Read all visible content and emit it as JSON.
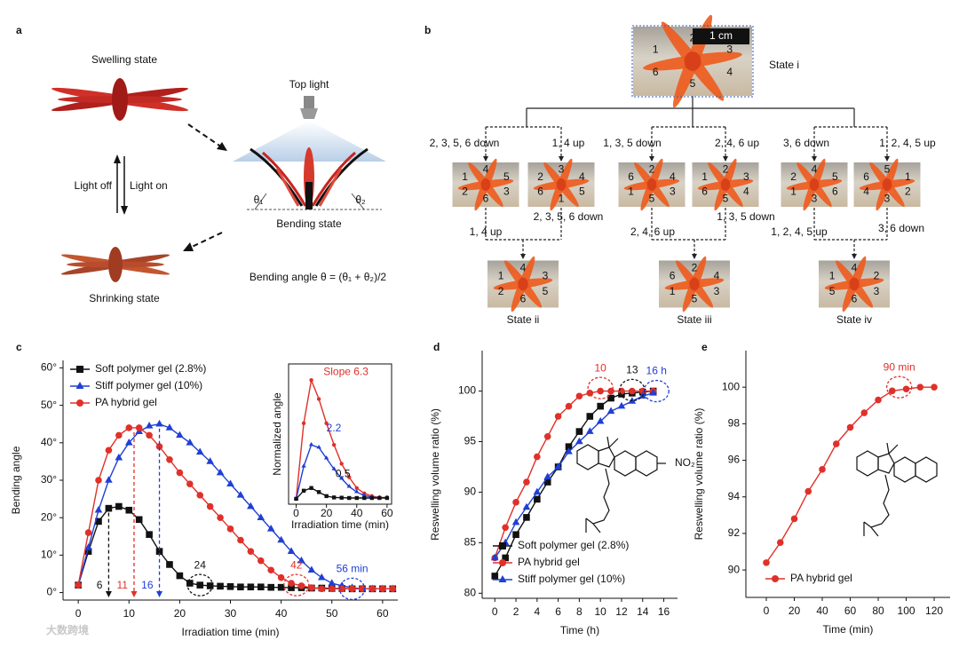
{
  "panel_a": {
    "label": "a",
    "swelling": "Swelling state",
    "top_light": "Top light",
    "light_off": "Light off",
    "light_on": "Light on",
    "theta1": "θ₁",
    "theta2": "θ₂",
    "bending": "Bending state",
    "shrinking": "Shrinking state",
    "formula": "Bending angle θ = (θ₁ + θ₂)/2"
  },
  "panel_b": {
    "label": "b",
    "scale_bar": "1 cm",
    "photos": [
      {
        "caption": "State i",
        "numbers": [
          "1",
          "2",
          "3",
          "4",
          "5",
          "6"
        ]
      },
      {
        "numbers": [
          "1",
          "4",
          "5",
          "3",
          "6",
          "2"
        ]
      },
      {
        "numbers": [
          "2",
          "3",
          "4",
          "5",
          "1",
          "6"
        ]
      },
      {
        "numbers": [
          "6",
          "2",
          "4",
          "3",
          "5",
          "1"
        ]
      },
      {
        "numbers": [
          "1",
          "2",
          "3",
          "4",
          "5",
          "6"
        ]
      },
      {
        "numbers": [
          "2",
          "4",
          "5",
          "6",
          "3",
          "1"
        ]
      },
      {
        "numbers": [
          "6",
          "5",
          "1",
          "2",
          "3",
          "4"
        ]
      },
      {
        "caption": "State ii",
        "numbers": [
          "1",
          "4",
          "3",
          "5",
          "6",
          "2"
        ]
      },
      {
        "caption": "State iii",
        "numbers": [
          "6",
          "2",
          "4",
          "3",
          "5",
          "1"
        ]
      },
      {
        "caption": "State iv",
        "numbers": [
          "1",
          "4",
          "2",
          "3",
          "6",
          "5"
        ]
      }
    ],
    "steps": [
      "2, 3, 5, 6 down",
      "1, 4 up",
      "1, 3, 5 down",
      "2, 4, 6 up",
      "3, 6 down",
      "1, 2, 4, 5 up",
      "2, 3, 5, 6 down",
      "1, 3, 5 down",
      "1, 4 up",
      "2, 4, 6 up",
      "1, 2, 4, 5 up",
      "3, 6 down"
    ]
  },
  "chart_data": [
    {
      "panel": "c",
      "type": "line",
      "xlabel": "Irradiation time (min)",
      "ylabel": "Bending angle",
      "x": [
        0,
        2,
        4,
        6,
        8,
        10,
        12,
        14,
        16,
        18,
        20,
        22,
        24,
        26,
        28,
        30,
        32,
        34,
        36,
        38,
        40,
        42,
        44,
        46,
        48,
        50,
        52,
        54,
        56,
        58,
        60,
        62
      ],
      "xlim": [
        -3,
        63
      ],
      "ylim": [
        -2,
        62
      ],
      "xticks": [
        0,
        10,
        20,
        30,
        40,
        50,
        60
      ],
      "yticks": [
        {
          "value": 0,
          "label": "0°"
        },
        {
          "value": 10,
          "label": "10°"
        },
        {
          "value": 20,
          "label": "20°"
        },
        {
          "value": 30,
          "label": "30°"
        },
        {
          "value": 40,
          "label": "40°"
        },
        {
          "value": 50,
          "label": "50°"
        },
        {
          "value": 60,
          "label": "60°"
        }
      ],
      "legend": "upper left",
      "series": [
        {
          "name": "Soft polymer gel (2.8%)",
          "color": "#111111",
          "marker": "square",
          "values": [
            2,
            11,
            19,
            22.5,
            23,
            22,
            19.5,
            15.5,
            11,
            7.5,
            4.5,
            2.5,
            2,
            1.8,
            1.7,
            1.6,
            1.5,
            1.5,
            1.5,
            1.4,
            1.4,
            1.3,
            1.3,
            1.2,
            1.2,
            1.1,
            1.1,
            1,
            1,
            1,
            1,
            1
          ]
        },
        {
          "name": "Stiff polymer gel (10%)",
          "color": "#1f3fd6",
          "marker": "triangle",
          "values": [
            2,
            12,
            22,
            30,
            36,
            40,
            43,
            44.5,
            45,
            44,
            42,
            40,
            37.5,
            35,
            32,
            29,
            26,
            23,
            20,
            17,
            14,
            11,
            8.5,
            6,
            4,
            2.5,
            1.8,
            1.3,
            1,
            1,
            1,
            1
          ]
        },
        {
          "name": "PA hybrid gel",
          "color": "#e0302a",
          "marker": "circle",
          "values": [
            2,
            16,
            30,
            38,
            42,
            44,
            44,
            42,
            39,
            35.5,
            32,
            29,
            26,
            23,
            20,
            17,
            14,
            11,
            8.5,
            6,
            4,
            2.5,
            1.8,
            1.3,
            1,
            1,
            1,
            1,
            1,
            1,
            1,
            1
          ]
        }
      ],
      "annotations": [
        {
          "text": "6",
          "x": 6,
          "y": 22.5,
          "style": "arrow",
          "color": "#111111"
        },
        {
          "text": "11",
          "x": 11,
          "y": 44,
          "style": "arrow",
          "color": "#e0302a"
        },
        {
          "text": "16",
          "x": 16,
          "y": 45,
          "style": "arrow",
          "color": "#1f3fd6"
        },
        {
          "text": "24",
          "x": 24,
          "y": 2,
          "style": "circle",
          "color": "#111111"
        },
        {
          "text": "42",
          "x": 43,
          "y": 2,
          "style": "circle",
          "color": "#e0302a"
        },
        {
          "text": "56 min",
          "x": 54,
          "y": 1,
          "style": "circle",
          "color": "#1f3fd6"
        }
      ]
    },
    {
      "type": "line",
      "xlabel": "Irradiation time (min)",
      "ylabel": "Normalized angle",
      "x": [
        0,
        5,
        10,
        15,
        20,
        25,
        30,
        35,
        40,
        45,
        50,
        55,
        60
      ],
      "xlim": [
        -5,
        63
      ],
      "ylim": [
        -2,
        50
      ],
      "xticks": [
        0,
        20,
        40,
        60
      ],
      "series": [
        {
          "color": "#e0302a",
          "marker": "circle",
          "values": [
            0,
            28,
            44,
            37,
            28,
            20,
            13,
            8,
            4,
            2,
            1,
            0.5,
            0.5
          ]
        },
        {
          "color": "#1f3fd6",
          "marker": "triangle",
          "values": [
            0,
            12,
            20,
            19,
            15,
            11,
            7.5,
            4.5,
            2.5,
            1.2,
            0.6,
            0.4,
            0.4
          ]
        },
        {
          "color": "#111111",
          "marker": "square",
          "values": [
            0,
            3,
            4,
            2.5,
            1,
            0.5,
            0.4,
            0.3,
            0.3,
            0.3,
            0.3,
            0.3,
            0.3
          ]
        }
      ],
      "annotations": [
        {
          "text": "Slope 6.3",
          "x": 18,
          "y": 47,
          "style": "text",
          "color": "#e0302a"
        },
        {
          "text": "2.2",
          "x": 20,
          "y": 26,
          "style": "text",
          "color": "#1f3fd6"
        },
        {
          "text": "0.5",
          "x": 26,
          "y": 9,
          "style": "text",
          "color": "#111111"
        }
      ]
    },
    {
      "panel": "d",
      "type": "line",
      "xlabel": "Time (h)",
      "ylabel": "Reswelling volume ratio (%)",
      "x": [
        0,
        1,
        2,
        3,
        4,
        5,
        6,
        7,
        8,
        9,
        10,
        11,
        12,
        13,
        14,
        15
      ],
      "xlim": [
        -1.2,
        17.3
      ],
      "ylim": [
        79.5,
        104
      ],
      "xticks": [
        0,
        2,
        4,
        6,
        8,
        10,
        12,
        14,
        16
      ],
      "yticks": [
        80,
        85,
        90,
        95,
        100
      ],
      "legend": "lower right",
      "structure_label": "NO₂",
      "series": [
        {
          "name": "Soft polymer gel (2.8%)",
          "color": "#111111",
          "marker": "square",
          "values": [
            81.7,
            83.5,
            85.8,
            87.5,
            89.3,
            91,
            92.5,
            94.5,
            96,
            97.5,
            98.5,
            99.3,
            99.7,
            99.8,
            99.9,
            100
          ]
        },
        {
          "name": "PA hybrid gel",
          "color": "#e0302a",
          "marker": "circle",
          "values": [
            83.5,
            86.5,
            89,
            91,
            93.5,
            95.5,
            97.5,
            98.5,
            99.5,
            99.8,
            100,
            100,
            100,
            100,
            100,
            100
          ]
        },
        {
          "name": "Stiff polymer gel (10%)",
          "color": "#1f3fd6",
          "marker": "triangle",
          "values": [
            83.5,
            85,
            87,
            88.5,
            90,
            91.5,
            92.5,
            94,
            95,
            96,
            97,
            98,
            98.5,
            99,
            99.5,
            99.8
          ]
        }
      ],
      "annotations": [
        {
          "text": "10",
          "x": 10,
          "y": 100.3,
          "style": "circle",
          "color": "#e0302a"
        },
        {
          "text": "13",
          "x": 13,
          "y": 100.1,
          "style": "circle",
          "color": "#111111"
        },
        {
          "text": "16 h",
          "x": 15.3,
          "y": 100,
          "style": "circle",
          "color": "#1f3fd6"
        }
      ]
    },
    {
      "panel": "e",
      "type": "line",
      "xlabel": "Time (min)",
      "ylabel": "Reswelling volume ratio (%)",
      "x": [
        0,
        10,
        20,
        30,
        40,
        50,
        60,
        70,
        80,
        90,
        100,
        110,
        120
      ],
      "xlim": [
        -14.6,
        131.4
      ],
      "ylim": [
        88.5,
        102
      ],
      "xticks": [
        0,
        20,
        40,
        60,
        80,
        100,
        120
      ],
      "yticks": [
        90,
        92,
        94,
        96,
        98,
        100
      ],
      "legend": "lower right",
      "series": [
        {
          "name": "PA hybrid gel",
          "color": "#e0302a",
          "marker": "circle",
          "values": [
            90.4,
            91.5,
            92.8,
            94.3,
            95.5,
            96.9,
            97.8,
            98.6,
            99.3,
            99.8,
            99.9,
            100,
            100
          ]
        }
      ],
      "annotations": [
        {
          "text": "90 min",
          "x": 95,
          "y": 100,
          "style": "circle",
          "color": "#e0302a"
        }
      ]
    }
  ],
  "watermark": "大数跨境"
}
